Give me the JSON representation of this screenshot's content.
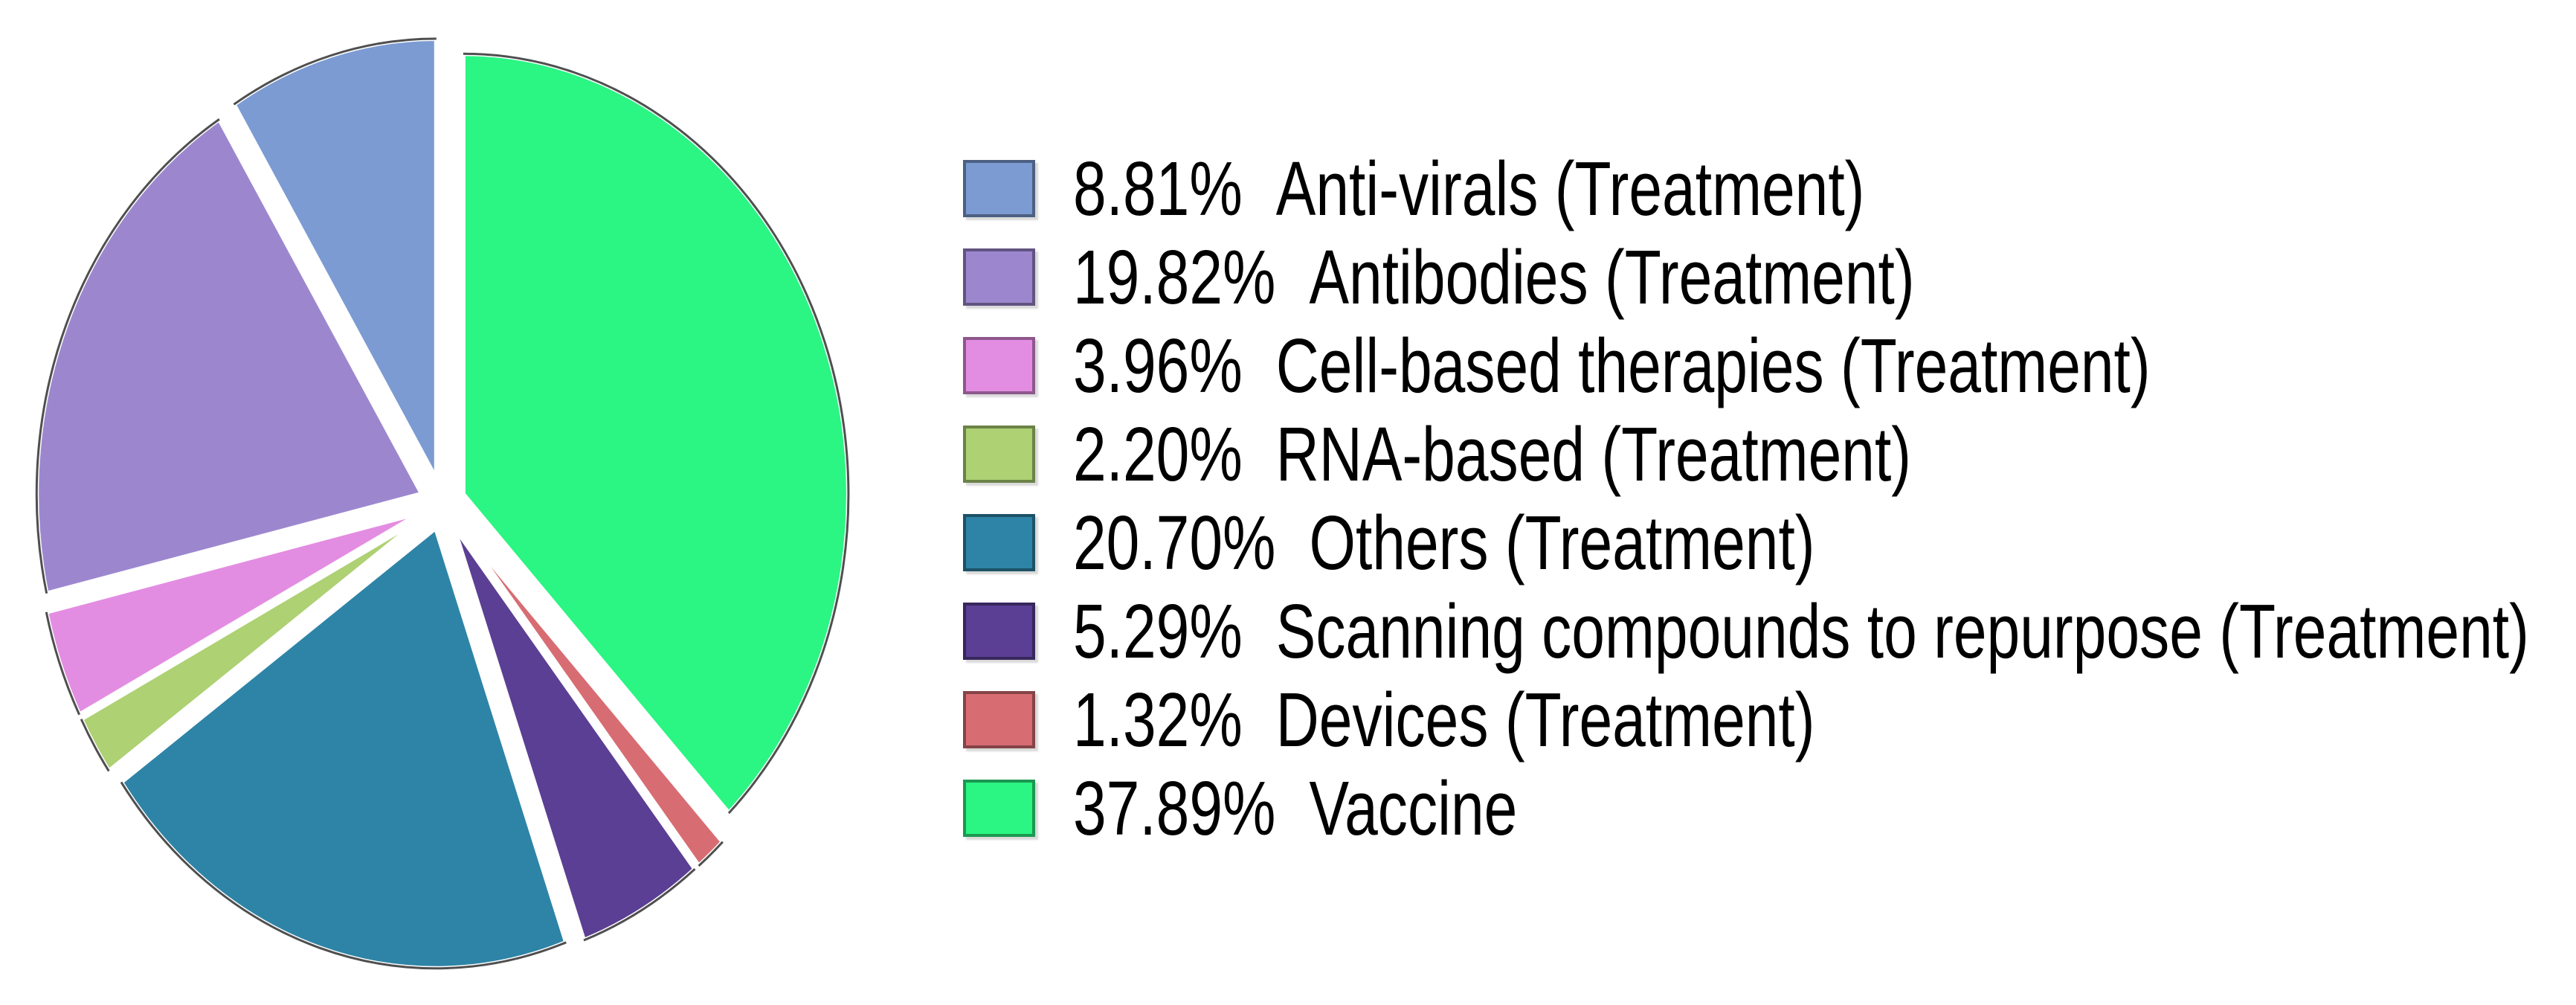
{
  "chart_data": {
    "type": "pie",
    "title": "",
    "start_angle_deg": 90,
    "direction": "counterclockwise",
    "legend_position": "right",
    "background_color": "#ffffff",
    "arc_outline_color": "#4f4f4f",
    "wedge_gap_color": "#ffffff",
    "slices": [
      {
        "id": "anti-virals",
        "pct": 8.81,
        "pct_label": "8.81%",
        "label": "Anti-virals (Treatment)",
        "color": "#7C9BD3"
      },
      {
        "id": "antibodies",
        "pct": 19.82,
        "pct_label": "19.82%",
        "label": "Antibodies (Treatment)",
        "color": "#9C87CF"
      },
      {
        "id": "cell-based-therapies",
        "pct": 3.96,
        "pct_label": "3.96%",
        "label": "Cell-based therapies (Treatment)",
        "color": "#E38DE2"
      },
      {
        "id": "rna-based",
        "pct": 2.2,
        "pct_label": "2.20%",
        "label": "RNA-based (Treatment)",
        "color": "#ADD173"
      },
      {
        "id": "others",
        "pct": 20.7,
        "pct_label": "20.70%",
        "label": "Others (Treatment)",
        "color": "#2E84A6"
      },
      {
        "id": "scanning-compounds",
        "pct": 5.29,
        "pct_label": "5.29%",
        "label": "Scanning compounds to repurpose (Treatment)",
        "color": "#5B3F94"
      },
      {
        "id": "devices",
        "pct": 1.32,
        "pct_label": "1.32%",
        "label": "Devices (Treatment)",
        "color": "#D76D73"
      },
      {
        "id": "vaccine",
        "pct": 37.89,
        "pct_label": "37.89%",
        "label": "Vaccine",
        "color": "#2BF583"
      }
    ]
  }
}
